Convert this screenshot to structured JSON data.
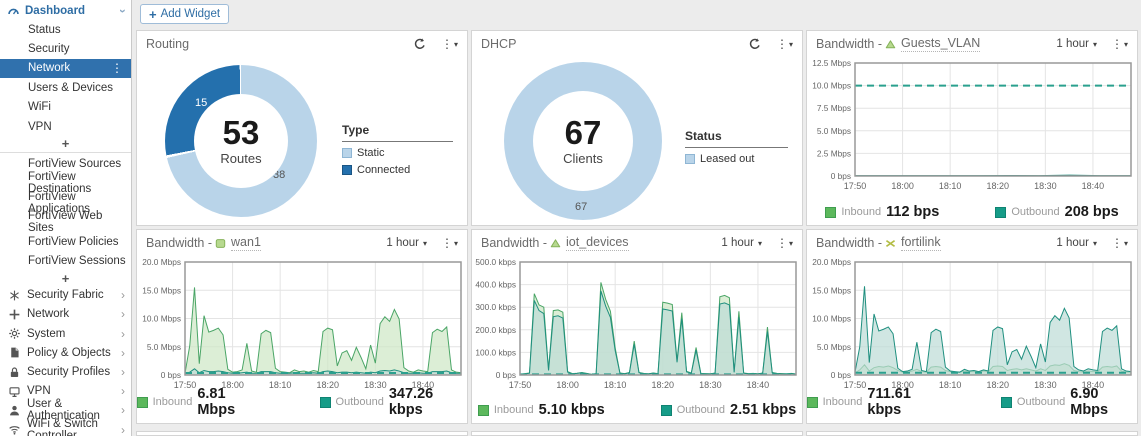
{
  "icons": {
    "caret_down": "▾",
    "dots": "⋮",
    "chevron_right": "›",
    "plus": "+"
  },
  "colors": {
    "accent_blue": "#2e6da4",
    "selected_bg": "#3071ad",
    "donut_light": "#b9d4e9",
    "donut_dark": "#2470ad",
    "inbound": "#5cb85c",
    "inbound_fill": "#cde7c5",
    "inbound_stroke": "#4aa566",
    "outbound": "#169c88",
    "outbound_fill": "#bcdcd6",
    "outbound_stroke": "#1f8f7f",
    "dashed": "#2aa08e"
  },
  "sidebar": {
    "dashboard_label": "Dashboard",
    "dashboard_children": [
      "Status",
      "Security",
      "Network",
      "Users & Devices",
      "WiFi",
      "VPN"
    ],
    "selected_child": "Network",
    "plus_label": "+",
    "fortiview_items": [
      "FortiView Sources",
      "FortiView Destinations",
      "FortiView Applications",
      "FortiView Web Sites",
      "FortiView Policies",
      "FortiView Sessions"
    ],
    "menu_items": [
      {
        "icon": "security-fabric-icon",
        "label": "Security Fabric"
      },
      {
        "icon": "network-icon",
        "label": "Network"
      },
      {
        "icon": "system-icon",
        "label": "System"
      },
      {
        "icon": "policy-objects-icon",
        "label": "Policy & Objects"
      },
      {
        "icon": "security-profiles-icon",
        "label": "Security Profiles"
      },
      {
        "icon": "vpn-icon",
        "label": "VPN"
      },
      {
        "icon": "user-auth-icon",
        "label": "User & Authentication"
      },
      {
        "icon": "wifi-switch-icon",
        "label": "WiFi & Switch Controller"
      }
    ]
  },
  "toolbar": {
    "plus": "+",
    "add_widget_label": "Add Widget"
  },
  "widgets": {
    "routing": {
      "title": "Routing",
      "donut": {
        "value": 53,
        "unit": "Routes",
        "static_count": 38,
        "connected_count": 15
      },
      "legend_title": "Type",
      "legend_items": [
        "Static",
        "Connected"
      ]
    },
    "dhcp": {
      "title": "DHCP",
      "donut": {
        "value": 67,
        "unit": "Clients",
        "count_label": 67
      },
      "legend_title": "Status",
      "legend_items": [
        "Leased out"
      ]
    }
  },
  "bandwidth_prefix": "Bandwidth - ",
  "bandwidth": [
    {
      "name": "Guests_VLAN",
      "icon": "vlan-icon",
      "interval": "1 hour",
      "legend": {
        "inbound_label": "Inbound",
        "inbound_value": "112 bps",
        "outbound_label": "Outbound",
        "outbound_value": "208 bps"
      },
      "ymax": 12.5,
      "xmax": 58,
      "dashed": 10.0,
      "yticks": [
        {
          "v": 0,
          "label": "0 bps"
        },
        {
          "v": 2.5,
          "label": "2.5 Mbps"
        },
        {
          "v": 5,
          "label": "5.0 Mbps"
        },
        {
          "v": 7.5,
          "label": "7.5 Mbps"
        },
        {
          "v": 10,
          "label": "10.0 Mbps"
        },
        {
          "v": 12.5,
          "label": "12.5 Mbps"
        }
      ],
      "xticks": [
        {
          "v": 0,
          "label": "17:50"
        },
        {
          "v": 10,
          "label": "18:00"
        },
        {
          "v": 20,
          "label": "18:10"
        },
        {
          "v": 30,
          "label": "18:20"
        },
        {
          "v": 40,
          "label": "18:30"
        },
        {
          "v": 50,
          "label": "18:40"
        }
      ],
      "series": {
        "inbound": [
          0.02,
          0.02,
          0.02,
          0.02,
          0.02,
          0.02,
          0.02,
          0.02,
          0.02,
          0.02
        ],
        "outbound": [
          0.04,
          0.04,
          0.04,
          0.04,
          0.04,
          0.06,
          0.04,
          0.1,
          0.04,
          0.04
        ]
      }
    },
    {
      "name": "wan1",
      "icon": "interface-icon",
      "interval": "1 hour",
      "legend": {
        "inbound_label": "Inbound",
        "inbound_value": "6.81 Mbps",
        "outbound_label": "Outbound",
        "outbound_value": "347.26 kbps"
      },
      "ymax": 20,
      "xmax": 58,
      "dashed": 0.35,
      "yticks": [
        {
          "v": 0,
          "label": "0 bps"
        },
        {
          "v": 5,
          "label": "5.0 Mbps"
        },
        {
          "v": 10,
          "label": "10.0 Mbps"
        },
        {
          "v": 15,
          "label": "15.0 Mbps"
        },
        {
          "v": 20,
          "label": "20.0 Mbps"
        }
      ],
      "xticks": [
        {
          "v": 0,
          "label": "17:50"
        },
        {
          "v": 10,
          "label": "18:00"
        },
        {
          "v": 20,
          "label": "18:10"
        },
        {
          "v": 30,
          "label": "18:20"
        },
        {
          "v": 40,
          "label": "18:30"
        },
        {
          "v": 50,
          "label": "18:40"
        }
      ],
      "series": {
        "inbound": [
          0.3,
          5.2,
          15.5,
          2.0,
          10.5,
          7.6,
          7.9,
          8.3,
          7.1,
          1.0,
          0.5,
          0.6,
          0.9,
          5.6,
          0.7,
          0.5,
          7.3,
          7.9,
          7.5,
          1.2,
          0.6,
          0.5,
          0.4,
          0.9,
          0.6,
          0.7,
          0.5,
          0.8,
          0.6,
          7.7,
          8.3,
          8.0,
          1.6,
          3.9,
          4.3,
          2.6,
          4.9,
          3.1,
          1.1,
          5.3,
          2.1,
          9.1,
          10.3,
          9.5,
          11.6,
          9.9,
          1.3,
          0.7,
          0.5,
          0.9,
          0.7,
          0.6,
          7.5,
          8.1,
          7.7,
          8.5,
          0.9,
          0.5,
          0.4
        ],
        "outbound": [
          0.3,
          0.5,
          1.1,
          0.4,
          0.8,
          0.6,
          0.6,
          0.7,
          0.6,
          0.4,
          0.3,
          0.3,
          0.4,
          0.5,
          0.3,
          0.3,
          0.6,
          0.6,
          0.6,
          0.4,
          0.3,
          0.3,
          0.3,
          0.4,
          0.3,
          0.3,
          0.3,
          0.4,
          0.3,
          0.6,
          0.7,
          0.6,
          0.4,
          0.5,
          0.5,
          0.4,
          0.5,
          0.4,
          0.3,
          0.5,
          0.4,
          0.7,
          0.8,
          0.7,
          0.9,
          0.7,
          0.4,
          0.3,
          0.3,
          0.4,
          0.3,
          0.3,
          0.6,
          0.6,
          0.6,
          0.7,
          0.4,
          0.3,
          0.3
        ]
      }
    },
    {
      "name": "iot_devices",
      "icon": "vlan-icon",
      "interval": "1 hour",
      "legend": {
        "inbound_label": "Inbound",
        "inbound_value": "5.10 kbps",
        "outbound_label": "Outbound",
        "outbound_value": "2.51 kbps"
      },
      "ymax": 500,
      "xmax": 58,
      "dashed": 3,
      "yticks": [
        {
          "v": 0,
          "label": "0 bps"
        },
        {
          "v": 100,
          "label": "100.0 kbps"
        },
        {
          "v": 200,
          "label": "200.0 kbps"
        },
        {
          "v": 300,
          "label": "300.0 kbps"
        },
        {
          "v": 400,
          "label": "400.0 kbps"
        },
        {
          "v": 500,
          "label": "500.0 kbps"
        }
      ],
      "xticks": [
        {
          "v": 0,
          "label": "17:50"
        },
        {
          "v": 10,
          "label": "18:00"
        },
        {
          "v": 20,
          "label": "18:10"
        },
        {
          "v": 30,
          "label": "18:20"
        },
        {
          "v": 40,
          "label": "18:30"
        },
        {
          "v": 50,
          "label": "18:40"
        }
      ],
      "series": {
        "inbound": [
          3,
          6,
          9,
          360,
          310,
          300,
          22,
          285,
          288,
          278,
          15,
          6,
          8,
          11,
          7,
          3,
          6,
          410,
          335,
          282,
          120,
          9,
          6,
          11,
          150,
          11,
          7,
          5,
          9,
          6,
          322,
          318,
          312,
          62,
          276,
          16,
          9,
          122,
          7,
          6,
          5,
          9,
          346,
          352,
          342,
          13,
          282,
          9,
          6,
          7,
          5,
          9,
          212,
          11,
          7,
          6,
          5,
          7,
          4
        ],
        "outbound": [
          3,
          5,
          8,
          330,
          285,
          272,
          20,
          258,
          262,
          252,
          13,
          5,
          7,
          10,
          6,
          3,
          5,
          372,
          305,
          255,
          108,
          8,
          5,
          10,
          136,
          10,
          6,
          5,
          8,
          5,
          292,
          288,
          283,
          56,
          250,
          14,
          8,
          110,
          6,
          5,
          5,
          8,
          314,
          319,
          310,
          12,
          256,
          8,
          5,
          6,
          5,
          8,
          192,
          10,
          6,
          5,
          5,
          6,
          4
        ]
      }
    },
    {
      "name": "fortilink",
      "icon": "aggregate-icon",
      "interval": "1 hour",
      "legend": {
        "inbound_label": "Inbound",
        "inbound_value": "711.61 kbps",
        "outbound_label": "Outbound",
        "outbound_value": "6.90 Mbps"
      },
      "ymax": 20,
      "xmax": 58,
      "dashed": 0.4,
      "yticks": [
        {
          "v": 0,
          "label": "0 bps"
        },
        {
          "v": 5,
          "label": "5.0 Mbps"
        },
        {
          "v": 10,
          "label": "10.0 Mbps"
        },
        {
          "v": 15,
          "label": "15.0 Mbps"
        },
        {
          "v": 20,
          "label": "20.0 Mbps"
        }
      ],
      "xticks": [
        {
          "v": 0,
          "label": "17:50"
        },
        {
          "v": 10,
          "label": "18:00"
        },
        {
          "v": 20,
          "label": "18:10"
        },
        {
          "v": 30,
          "label": "18:20"
        },
        {
          "v": 40,
          "label": "18:30"
        },
        {
          "v": 50,
          "label": "18:40"
        }
      ],
      "series": {
        "inbound": [
          0.4,
          0.9,
          1.8,
          0.7,
          1.3,
          1.5,
          1.4,
          1.6,
          1.3,
          0.8,
          0.5,
          0.5,
          0.7,
          1.0,
          0.6,
          0.5,
          1.4,
          1.5,
          1.4,
          0.8,
          0.6,
          0.5,
          0.5,
          0.7,
          0.6,
          0.6,
          0.5,
          0.7,
          0.6,
          1.5,
          1.6,
          1.5,
          0.8,
          1.0,
          1.1,
          0.9,
          1.1,
          0.9,
          0.7,
          1.1,
          0.8,
          1.6,
          1.8,
          1.7,
          2.0,
          1.7,
          0.8,
          0.6,
          0.5,
          0.7,
          0.6,
          0.6,
          1.4,
          1.5,
          1.4,
          1.6,
          0.7,
          0.5,
          0.5
        ],
        "outbound": [
          0.5,
          5.0,
          15.7,
          2.2,
          10.8,
          7.8,
          8.1,
          8.5,
          7.3,
          1.2,
          0.6,
          0.7,
          1.0,
          5.8,
          0.8,
          0.6,
          7.5,
          8.1,
          7.7,
          1.4,
          0.7,
          0.6,
          0.5,
          1.0,
          0.7,
          0.8,
          0.6,
          0.9,
          0.7,
          7.9,
          8.5,
          8.2,
          1.8,
          4.1,
          4.5,
          2.8,
          5.1,
          3.3,
          1.3,
          5.5,
          2.3,
          9.3,
          10.5,
          9.7,
          11.8,
          10.1,
          1.5,
          0.9,
          0.7,
          1.1,
          0.9,
          0.8,
          7.7,
          8.3,
          7.9,
          8.7,
          1.1,
          0.7,
          0.6
        ]
      }
    }
  ]
}
